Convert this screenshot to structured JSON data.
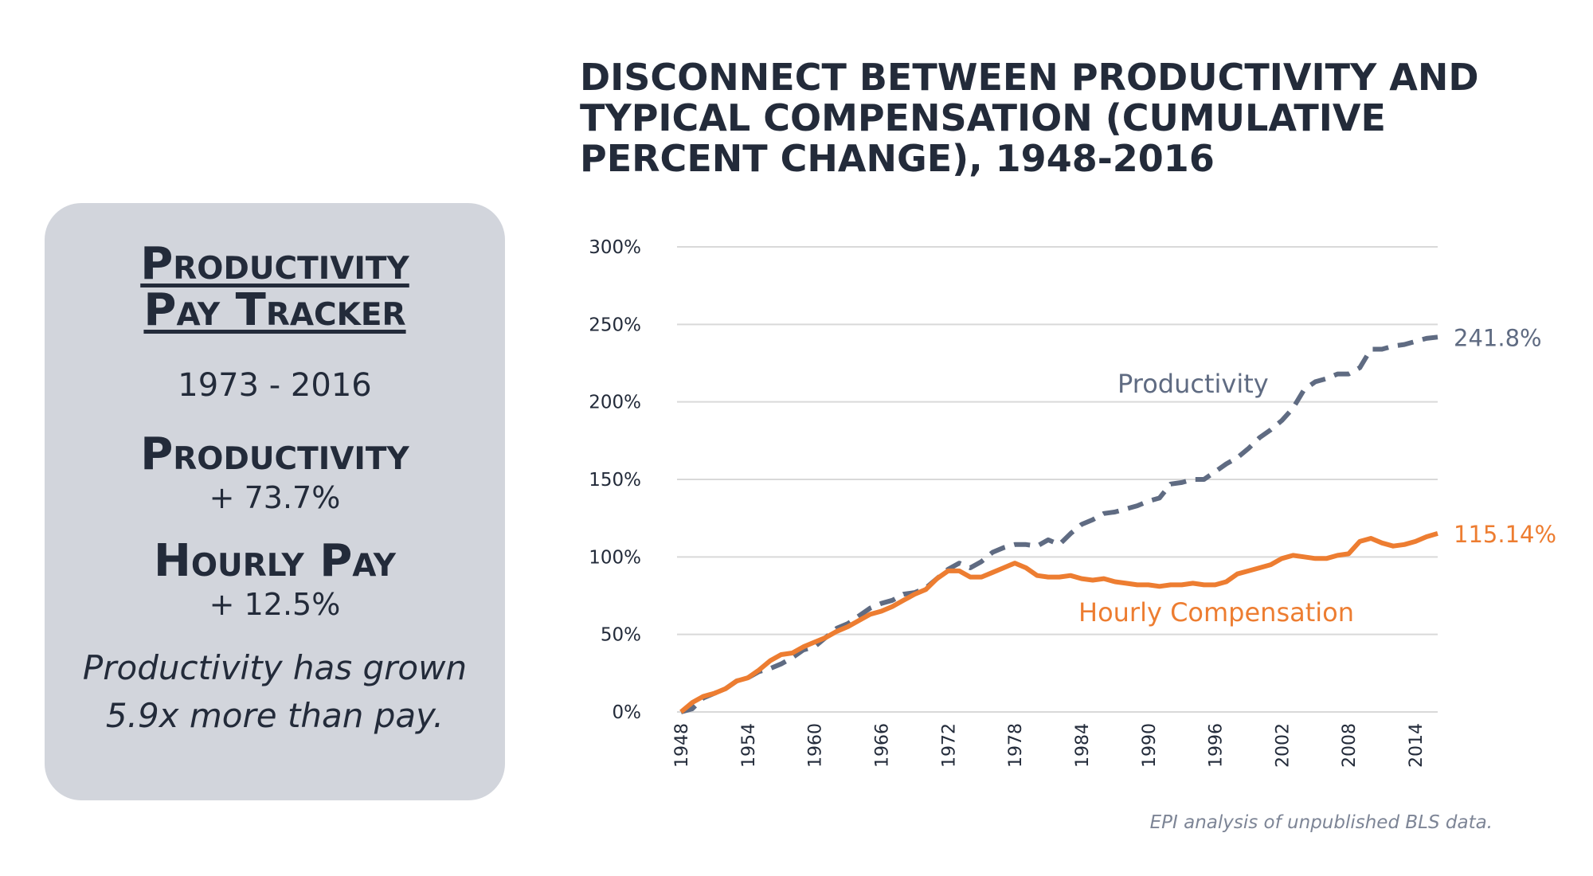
{
  "tracker": {
    "title_line1": "Productivity ",
    "title_line2": "Pay Tracker",
    "years": "1973 - 2016",
    "productivity_label": "Productivity",
    "productivity_value": "+ 73.7%",
    "pay_label": "Hourly Pay",
    "pay_value": "+ 12.5%",
    "note_line1": "Productivity has grown",
    "note_line2": "5.9x more than pay."
  },
  "chart_data": {
    "type": "line",
    "title": "DISCONNECT BETWEEN PRODUCTIVITY AND TYPICAL COMPENSATION (CUMULATIVE PERCENT CHANGE), 1948-2016",
    "source": "EPI analysis of  unpublished BLS data.",
    "xlim": [
      1948,
      2016
    ],
    "ylim": [
      0,
      300
    ],
    "yticks": [
      "0%",
      "50%",
      "100%",
      "150%",
      "200%",
      "250%",
      "300%"
    ],
    "ytick_values": [
      0,
      50,
      100,
      150,
      200,
      250,
      300
    ],
    "xticks": [
      "1948",
      "1954",
      "1960",
      "1966",
      "1972",
      "1978",
      "1984",
      "1990",
      "1996",
      "2002",
      "2008",
      "2014"
    ],
    "xtick_values": [
      1948,
      1954,
      1960,
      1966,
      1972,
      1978,
      1984,
      1990,
      1996,
      2002,
      2008,
      2014
    ],
    "grid": true,
    "colors": {
      "productivity": "#5f6b82",
      "compensation": "#ed7d31",
      "grid": "#d9d9d9",
      "text": "#232b3a"
    },
    "series": [
      {
        "name": "Productivity",
        "style": "dashed",
        "end_label": "241.8%",
        "x": [
          1948,
          1949,
          1950,
          1951,
          1952,
          1953,
          1954,
          1955,
          1956,
          1957,
          1958,
          1959,
          1960,
          1961,
          1962,
          1963,
          1964,
          1965,
          1966,
          1967,
          1968,
          1969,
          1970,
          1971,
          1972,
          1973,
          1974,
          1975,
          1976,
          1977,
          1978,
          1979,
          1980,
          1981,
          1982,
          1983,
          1984,
          1985,
          1986,
          1987,
          1988,
          1989,
          1990,
          1991,
          1992,
          1993,
          1994,
          1995,
          1996,
          1997,
          1998,
          1999,
          2000,
          2001,
          2002,
          2003,
          2004,
          2005,
          2006,
          2007,
          2008,
          2009,
          2010,
          2011,
          2012,
          2013,
          2014,
          2015,
          2016
        ],
        "values": [
          0,
          2,
          9,
          12,
          15,
          20,
          22,
          26,
          28,
          31,
          35,
          40,
          42,
          48,
          54,
          57,
          62,
          67,
          70,
          72,
          76,
          77,
          80,
          86,
          92,
          96,
          93,
          97,
          103,
          106,
          108,
          108,
          107,
          111,
          108,
          115,
          121,
          124,
          128,
          129,
          131,
          133,
          136,
          138,
          147,
          148,
          150,
          150,
          155,
          160,
          164,
          170,
          177,
          182,
          188,
          196,
          208,
          213,
          215,
          218,
          218,
          222,
          234,
          234,
          236,
          237,
          239,
          241,
          241.8
        ]
      },
      {
        "name": "Hourly Compensation",
        "style": "solid",
        "end_label": "115.14%",
        "x": [
          1948,
          1949,
          1950,
          1951,
          1952,
          1953,
          1954,
          1955,
          1956,
          1957,
          1958,
          1959,
          1960,
          1961,
          1962,
          1963,
          1964,
          1965,
          1966,
          1967,
          1968,
          1969,
          1970,
          1971,
          1972,
          1973,
          1974,
          1975,
          1976,
          1977,
          1978,
          1979,
          1980,
          1981,
          1982,
          1983,
          1984,
          1985,
          1986,
          1987,
          1988,
          1989,
          1990,
          1991,
          1992,
          1993,
          1994,
          1995,
          1996,
          1997,
          1998,
          1999,
          2000,
          2001,
          2002,
          2003,
          2004,
          2005,
          2006,
          2007,
          2008,
          2009,
          2010,
          2011,
          2012,
          2013,
          2014,
          2015,
          2016
        ],
        "values": [
          0,
          6,
          10,
          12,
          15,
          20,
          22,
          27,
          33,
          37,
          38,
          42,
          45,
          48,
          52,
          55,
          59,
          63,
          65,
          68,
          72,
          76,
          79,
          86,
          91,
          91,
          87,
          87,
          90,
          93,
          96,
          93,
          88,
          87,
          87,
          88,
          86,
          85,
          86,
          84,
          83,
          82,
          82,
          81,
          82,
          82,
          83,
          82,
          82,
          84,
          89,
          91,
          93,
          95,
          99,
          101,
          100,
          99,
          99,
          101,
          102,
          110,
          112,
          109,
          107,
          108,
          110,
          113,
          115.14
        ]
      }
    ],
    "series_labels": [
      {
        "text": "Productivity",
        "series": 0
      },
      {
        "text": "Hourly Compensation",
        "series": 1
      }
    ]
  }
}
